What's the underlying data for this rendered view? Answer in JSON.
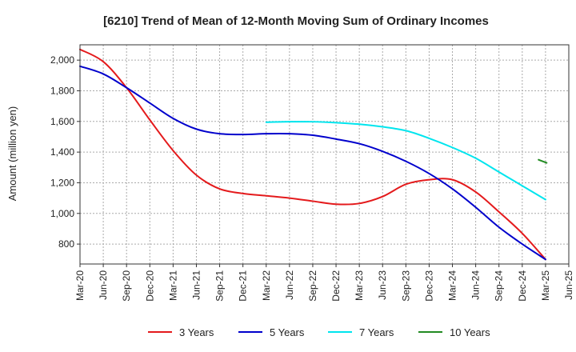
{
  "chart_data": {
    "type": "line",
    "title": "[6210]  Trend of Mean of 12-Month Moving Sum of Ordinary Incomes",
    "ylabel": "Amount (million yen)",
    "xlabel": "",
    "ylim": [
      670,
      2100
    ],
    "yticks": [
      800,
      1000,
      1200,
      1400,
      1600,
      1800,
      2000
    ],
    "ytick_labels": [
      "800",
      "1,000",
      "1,200",
      "1,400",
      "1,600",
      "1,800",
      "2,000"
    ],
    "x_labels": [
      "Mar-20",
      "Jun-20",
      "Sep-20",
      "Dec-20",
      "Mar-21",
      "Jun-21",
      "Sep-21",
      "Dec-21",
      "Mar-22",
      "Jun-22",
      "Sep-22",
      "Dec-22",
      "Mar-23",
      "Jun-23",
      "Sep-23",
      "Dec-23",
      "Mar-24",
      "Jun-24",
      "Sep-24",
      "Dec-24",
      "Mar-25",
      "Jun-25"
    ],
    "grid": true,
    "legend_position": "bottom",
    "series": [
      {
        "name": "3 Years",
        "color": "#e41a1c",
        "start_index": 0,
        "values": [
          2070,
          1990,
          1820,
          1610,
          1410,
          1250,
          1160,
          1130,
          1115,
          1100,
          1080,
          1060,
          1065,
          1110,
          1190,
          1220,
          1220,
          1140,
          1010,
          870,
          700
        ]
      },
      {
        "name": "5 Years",
        "color": "#0000cc",
        "start_index": 0,
        "values": [
          1960,
          1910,
          1820,
          1720,
          1620,
          1550,
          1520,
          1515,
          1520,
          1520,
          1510,
          1485,
          1455,
          1405,
          1340,
          1260,
          1160,
          1040,
          910,
          800,
          700
        ]
      },
      {
        "name": "7 Years",
        "color": "#00e5ee",
        "start_index": 8,
        "values": [
          1595,
          1598,
          1598,
          1592,
          1582,
          1565,
          1540,
          1490,
          1430,
          1360,
          1270,
          1180,
          1090
        ]
      },
      {
        "name": "10 Years",
        "color": "#228b22",
        "start_index": 19.7,
        "values": [
          1350,
          1330
        ]
      }
    ]
  }
}
